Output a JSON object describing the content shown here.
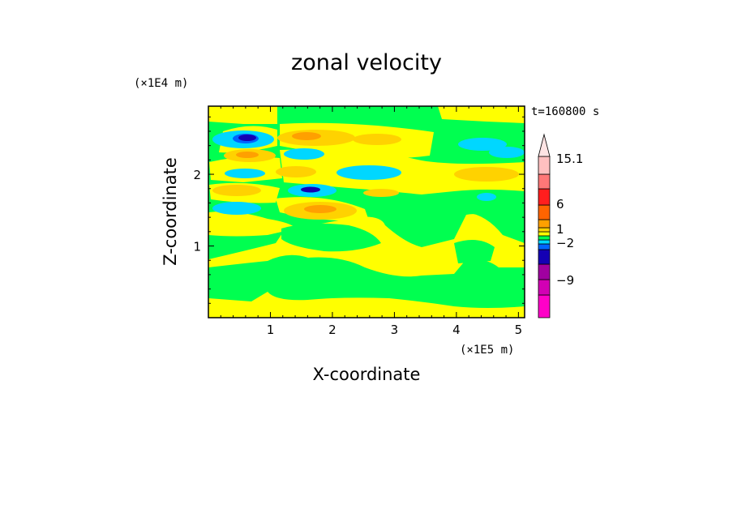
{
  "chart_data": {
    "type": "heatmap",
    "title": "zonal velocity",
    "xlabel": "X-coordinate",
    "ylabel": "Z-coordinate",
    "x_unit": "(×1E5 m)",
    "y_unit": "(×1E4 m)",
    "time_label": "t=160800 s",
    "xlim": [
      0,
      5.1
    ],
    "ylim": [
      0,
      2.95
    ],
    "xticks": [
      "1",
      "2",
      "3",
      "4",
      "5"
    ],
    "yticks": [
      "1",
      "2"
    ],
    "colorbar": {
      "labels": [
        "15.1",
        "6",
        "1",
        "−2",
        "−9"
      ],
      "colors_bottom_to_top": [
        "#ff00c8",
        "#d200b4",
        "#a000a0",
        "#1400b4",
        "#0064ff",
        "#00d7ff",
        "#00ff50",
        "#ffff00",
        "#ffd200",
        "#ffa000",
        "#ff6400",
        "#ff1e1e",
        "#ff7878",
        "#ffc0c0"
      ]
    },
    "features": [
      {
        "name": "negative-core",
        "x": 0.75,
        "z": 2.5,
        "level": -9
      },
      {
        "name": "negative-core",
        "x": 1.65,
        "z": 1.8,
        "level": -9
      },
      {
        "name": "positive-core",
        "x": 0.7,
        "z": 2.28,
        "level": 6
      },
      {
        "name": "positive-core",
        "x": 1.8,
        "z": 1.52,
        "level": 6
      }
    ]
  }
}
